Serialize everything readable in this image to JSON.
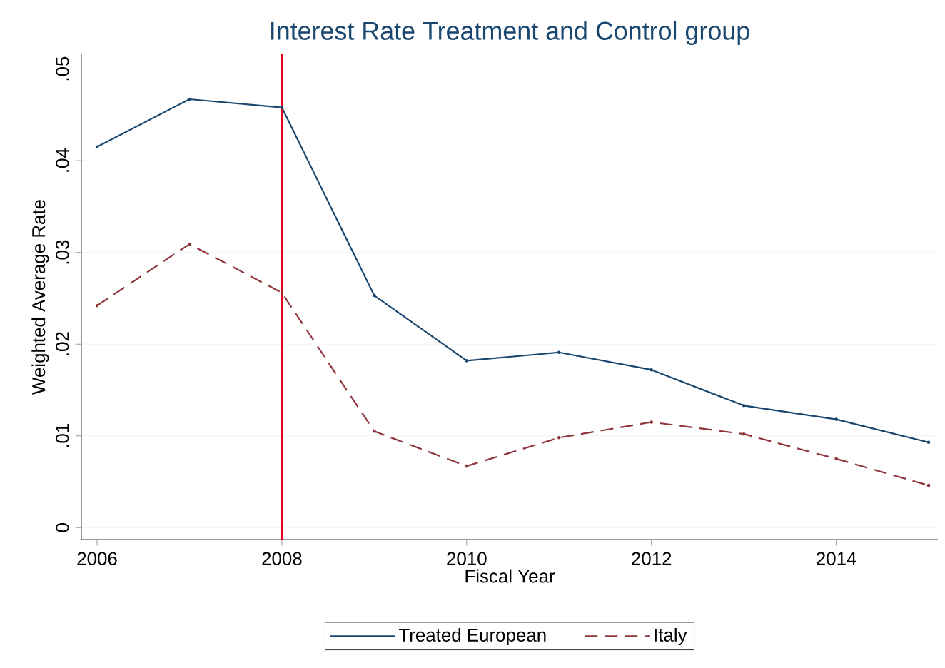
{
  "chart_data": {
    "type": "line",
    "title": "Interest Rate Treatment and Control group",
    "xlabel": "Fiscal Year",
    "ylabel": "Weighted Average Rate",
    "x": [
      2006,
      2007,
      2008,
      2009,
      2010,
      2011,
      2012,
      2013,
      2014,
      2015
    ],
    "series": [
      {
        "name": "Treated European",
        "color": "#1a476f",
        "line_style": "solid",
        "values": [
          0.0415,
          0.0467,
          0.0458,
          0.0253,
          0.0182,
          0.0191,
          0.0172,
          0.0133,
          0.0118,
          0.0093
        ]
      },
      {
        "name": "Italy",
        "color": "#90353b",
        "line_style": "dashed",
        "values": [
          0.0242,
          0.0309,
          0.0256,
          0.0105,
          0.0067,
          0.0098,
          0.0115,
          0.0102,
          0.0075,
          0.0046
        ]
      }
    ],
    "xlim": [
      2005.83,
      2015.1
    ],
    "ylim": [
      -0.0013,
      0.0516
    ],
    "xticks": [
      2006,
      2008,
      2010,
      2012,
      2014
    ],
    "yticks": [
      {
        "value": 0,
        "label": "0"
      },
      {
        "value": 0.01,
        "label": ".01"
      },
      {
        "value": 0.02,
        "label": ".02"
      },
      {
        "value": 0.03,
        "label": ".03"
      },
      {
        "value": 0.04,
        "label": ".04"
      },
      {
        "value": 0.05,
        "label": ".05"
      }
    ],
    "ref_lines": [
      {
        "axis": "x",
        "value": 2008,
        "color": "#e3001b"
      }
    ],
    "grid": "y",
    "legend": "bottom",
    "marker": "circle"
  }
}
